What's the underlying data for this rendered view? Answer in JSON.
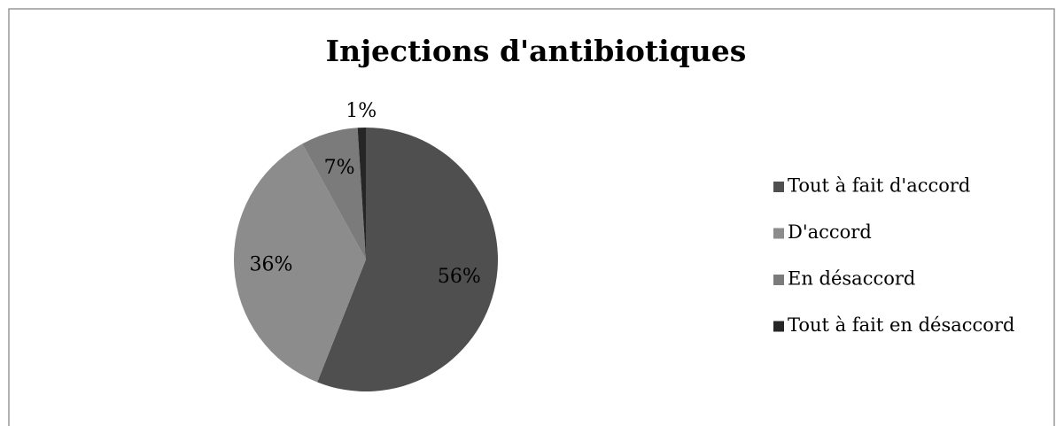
{
  "chart_data": {
    "type": "pie",
    "title": "Injections d'antibiotiques",
    "categories": [
      "Tout à fait d'accord",
      "D'accord",
      "En désaccord",
      "Tout à fait en désaccord"
    ],
    "values": [
      56,
      36,
      7,
      1
    ],
    "value_labels": [
      "56%",
      "36%",
      "7%",
      "1%"
    ],
    "colors": [
      "#4f4f4f",
      "#8c8c8c",
      "#7b7b7b",
      "#262626"
    ],
    "legend": "right"
  }
}
